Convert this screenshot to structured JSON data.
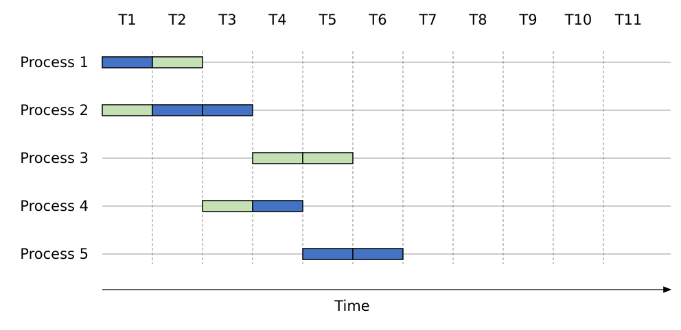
{
  "columns": [
    "T1",
    "T2",
    "T3",
    "T4",
    "T5",
    "T6",
    "T7",
    "T8",
    "T9",
    "T10",
    "T11"
  ],
  "rows": [
    {
      "label": "Process 1",
      "cells": [
        "#4472c4",
        "#c5e0b4",
        null,
        null,
        null,
        null,
        null,
        null,
        null,
        null,
        null
      ]
    },
    {
      "label": "Process 2",
      "cells": [
        "#c5e0b4",
        "#4472c4",
        "#4472c4",
        null,
        null,
        null,
        null,
        null,
        null,
        null,
        null
      ]
    },
    {
      "label": "Process 3",
      "cells": [
        null,
        null,
        null,
        "#c5e0b4",
        "#c5e0b4",
        null,
        null,
        null,
        null,
        null,
        null
      ]
    },
    {
      "label": "Process 4",
      "cells": [
        null,
        null,
        "#c5e0b4",
        "#4472c4",
        null,
        null,
        null,
        null,
        null,
        null,
        null
      ]
    },
    {
      "label": "Process 5",
      "cells": [
        null,
        null,
        null,
        null,
        "#4472c4",
        "#4472c4",
        null,
        null,
        null,
        null,
        null
      ]
    }
  ],
  "axis_label": "Time"
}
